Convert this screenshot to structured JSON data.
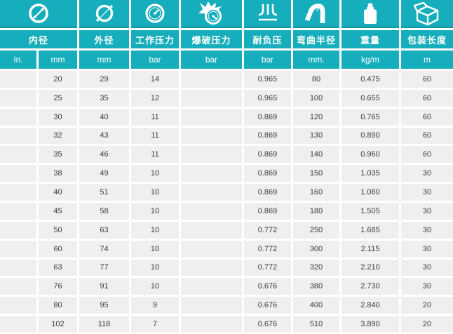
{
  "theme": {
    "teal": "#16aebc",
    "teal_dark_edge": "#0d95a3",
    "cell_background": "#efefef",
    "cell_text": "#3a3a3a",
    "header_text": "#ffffff"
  },
  "header": {
    "columns": [
      {
        "icon": "inner-diameter-icon",
        "label": "内径"
      },
      {
        "icon": "outer-diameter-icon",
        "label": "外径"
      },
      {
        "icon": "working-pressure-gauge-icon",
        "label": "工作压力"
      },
      {
        "icon": "burst-pressure-icon",
        "label": "爆破压力"
      },
      {
        "icon": "vacuum-resistance-icon",
        "label": "耐负压"
      },
      {
        "icon": "bend-radius-icon",
        "label": "弯曲半径"
      },
      {
        "icon": "weight-icon",
        "label": "重量"
      },
      {
        "icon": "package-length-icon",
        "label": "包装长度"
      }
    ],
    "units": [
      "In.",
      "mm",
      "mm",
      "bar",
      "bar",
      "bar",
      "mm.",
      "kg/m",
      "m"
    ]
  },
  "chart_data": {
    "type": "table",
    "column_labels": [
      "内径 In.",
      "内径 mm",
      "外径 mm",
      "工作压力 bar",
      "爆破压力 bar",
      "耐负压 bar",
      "弯曲半径 mm.",
      "重量 kg/m",
      "包装长度 m"
    ],
    "rows": [
      [
        "",
        "20",
        "29",
        "14",
        "",
        "0.965",
        "80",
        "0.475",
        "60"
      ],
      [
        "",
        "25",
        "35",
        "12",
        "",
        "0.965",
        "100",
        "0.655",
        "60"
      ],
      [
        "",
        "30",
        "40",
        "11",
        "",
        "0.869",
        "120",
        "0.765",
        "60"
      ],
      [
        "",
        "32",
        "43",
        "11",
        "",
        "0.869",
        "130",
        "0.890",
        "60"
      ],
      [
        "",
        "35",
        "46",
        "11",
        "",
        "0.869",
        "140",
        "0.960",
        "60"
      ],
      [
        "",
        "38",
        "49",
        "10",
        "",
        "0.869",
        "150",
        "1.035",
        "30"
      ],
      [
        "",
        "40",
        "51",
        "10",
        "",
        "0.869",
        "160",
        "1.080",
        "30"
      ],
      [
        "",
        "45",
        "58",
        "10",
        "",
        "0.869",
        "180",
        "1.505",
        "30"
      ],
      [
        "",
        "50",
        "63",
        "10",
        "",
        "0.772",
        "250",
        "1.685",
        "30"
      ],
      [
        "",
        "60",
        "74",
        "10",
        "",
        "0.772",
        "300",
        "2.115",
        "30"
      ],
      [
        "",
        "63",
        "77",
        "10",
        "",
        "0.772",
        "320",
        "2.210",
        "30"
      ],
      [
        "",
        "76",
        "91",
        "10",
        "",
        "0.676",
        "380",
        "2.730",
        "30"
      ],
      [
        "",
        "80",
        "95",
        "9",
        "",
        "0.676",
        "400",
        "2.840",
        "20"
      ],
      [
        "",
        "102",
        "118",
        "7",
        "",
        "0.676",
        "510",
        "3.890",
        "20"
      ]
    ]
  }
}
